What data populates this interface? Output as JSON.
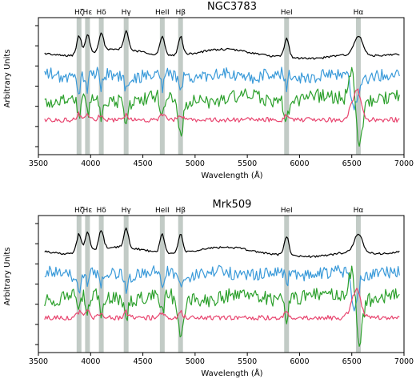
{
  "chart_data": [
    {
      "type": "line",
      "title": "NGC3783",
      "xlabel": "Wavelength (Å)",
      "ylabel": "Arbitrary Units",
      "xlim": [
        3500,
        7000
      ],
      "xticks": [
        "3500",
        "4000",
        "4500",
        "5000",
        "5500",
        "6000",
        "6500",
        "7000"
      ],
      "grid": false,
      "emission_lines": [
        {
          "label": "Hζ",
          "wavelength": 3889
        },
        {
          "label": "Hε",
          "wavelength": 3970
        },
        {
          "label": "Hδ",
          "wavelength": 4102
        },
        {
          "label": "Hγ",
          "wavelength": 4340
        },
        {
          "label": "HeII",
          "wavelength": 4686
        },
        {
          "label": "Hβ",
          "wavelength": 4861
        },
        {
          "label": "HeI",
          "wavelength": 5876
        },
        {
          "label": "Hα",
          "wavelength": 6563
        }
      ],
      "series": [
        {
          "color": "#000000",
          "offset": 3.2,
          "profile": "template"
        },
        {
          "color": "#3a9ad9",
          "offset": 2.2,
          "profile": "noisy"
        },
        {
          "color": "#2ca02c",
          "offset": 1.2,
          "profile": "noisy-deep"
        },
        {
          "color": "#e8456f",
          "offset": 0.3,
          "profile": "smooth"
        }
      ]
    },
    {
      "type": "line",
      "title": "Mrk509",
      "xlabel": "Wavelength (Å)",
      "ylabel": "Arbitrary Units",
      "xlim": [
        3500,
        7000
      ],
      "xticks": [
        "3500",
        "4000",
        "4500",
        "5000",
        "5500",
        "6000",
        "6500",
        "7000"
      ],
      "grid": false,
      "emission_lines": [
        {
          "label": "Hζ",
          "wavelength": 3889
        },
        {
          "label": "Hε",
          "wavelength": 3970
        },
        {
          "label": "Hδ",
          "wavelength": 4102
        },
        {
          "label": "Hγ",
          "wavelength": 4340
        },
        {
          "label": "HeII",
          "wavelength": 4686
        },
        {
          "label": "Hβ",
          "wavelength": 4861
        },
        {
          "label": "HeI",
          "wavelength": 5876
        },
        {
          "label": "Hα",
          "wavelength": 6563
        }
      ],
      "series": [
        {
          "color": "#000000",
          "offset": 3.2,
          "profile": "template"
        },
        {
          "color": "#3a9ad9",
          "offset": 2.2,
          "profile": "noisy"
        },
        {
          "color": "#2ca02c",
          "offset": 1.2,
          "profile": "noisy-deep"
        },
        {
          "color": "#e8456f",
          "offset": 0.3,
          "profile": "smooth"
        }
      ]
    }
  ]
}
